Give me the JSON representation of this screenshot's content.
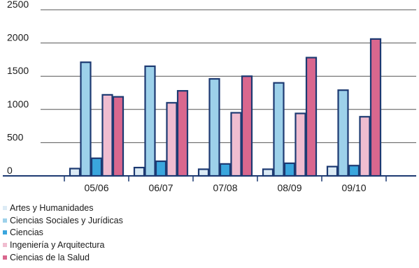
{
  "chart_data": {
    "type": "bar",
    "categories": [
      "05/06",
      "06/07",
      "07/08",
      "08/09",
      "09/10"
    ],
    "series": [
      {
        "name": "Artes y Humanidades",
        "color": "#dcebf5",
        "values": [
          110,
          125,
          100,
          100,
          140
        ]
      },
      {
        "name": "Ciencias Sociales y Jurídicas",
        "color": "#9dd1ea",
        "values": [
          1710,
          1650,
          1460,
          1400,
          1290
        ]
      },
      {
        "name": "Ciencias",
        "color": "#3aa6dd",
        "values": [
          265,
          220,
          180,
          190,
          155
        ]
      },
      {
        "name": "Ingeniería y Arquitectura",
        "color": "#f0bdd0",
        "values": [
          1220,
          1100,
          950,
          940,
          890
        ]
      },
      {
        "name": "Ciencias de la Salud",
        "color": "#d9678e",
        "values": [
          1190,
          1280,
          1500,
          1780,
          2060
        ]
      }
    ],
    "y_ticks": [
      "0",
      "500",
      "1000",
      "1500",
      "2000",
      "2500"
    ],
    "ylim": [
      0,
      2500
    ],
    "grid": "horizontal",
    "legend_position": "bottom-left",
    "bar_outline_color": "#1d3a72",
    "axis_color": "#1d3a72"
  }
}
